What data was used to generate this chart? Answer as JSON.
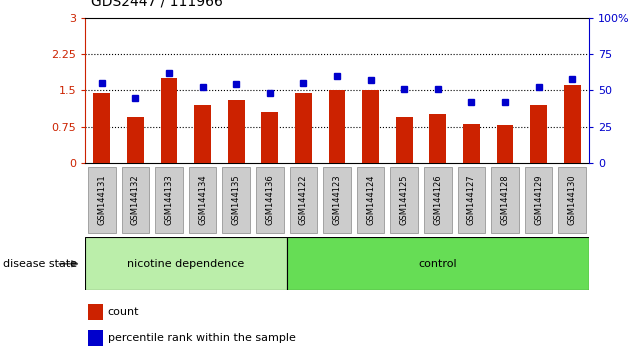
{
  "title": "GDS2447 / 111966",
  "categories": [
    "GSM144131",
    "GSM144132",
    "GSM144133",
    "GSM144134",
    "GSM144135",
    "GSM144136",
    "GSM144122",
    "GSM144123",
    "GSM144124",
    "GSM144125",
    "GSM144126",
    "GSM144127",
    "GSM144128",
    "GSM144129",
    "GSM144130"
  ],
  "red_values": [
    1.45,
    0.95,
    1.75,
    1.2,
    1.3,
    1.05,
    1.45,
    1.5,
    1.5,
    0.95,
    1.0,
    0.8,
    0.78,
    1.2,
    1.6
  ],
  "blue_values": [
    55,
    45,
    62,
    52,
    54,
    48,
    55,
    60,
    57,
    51,
    51,
    42,
    42,
    52,
    58
  ],
  "red_color": "#cc2200",
  "blue_color": "#0000cc",
  "ylim_left": [
    0,
    3
  ],
  "ylim_right": [
    0,
    100
  ],
  "yticks_left": [
    0,
    0.75,
    1.5,
    2.25,
    3
  ],
  "yticks_right": [
    0,
    25,
    50,
    75,
    100
  ],
  "ytick_labels_left": [
    "0",
    "0.75",
    "1.5",
    "2.25",
    "3"
  ],
  "ytick_labels_right": [
    "0",
    "25",
    "50",
    "75",
    "100%"
  ],
  "hlines": [
    0.75,
    1.5,
    2.25
  ],
  "group1_label": "nicotine dependence",
  "group2_label": "control",
  "group1_count": 6,
  "group2_count": 9,
  "disease_state_label": "disease state",
  "legend_count_label": "count",
  "legend_percentile_label": "percentile rank within the sample",
  "bar_width": 0.5,
  "marker_size": 5,
  "group1_color": "#bbeeaa",
  "group2_color": "#66dd55",
  "tickbox_color": "#cccccc",
  "fig_width": 6.3,
  "fig_height": 3.54
}
